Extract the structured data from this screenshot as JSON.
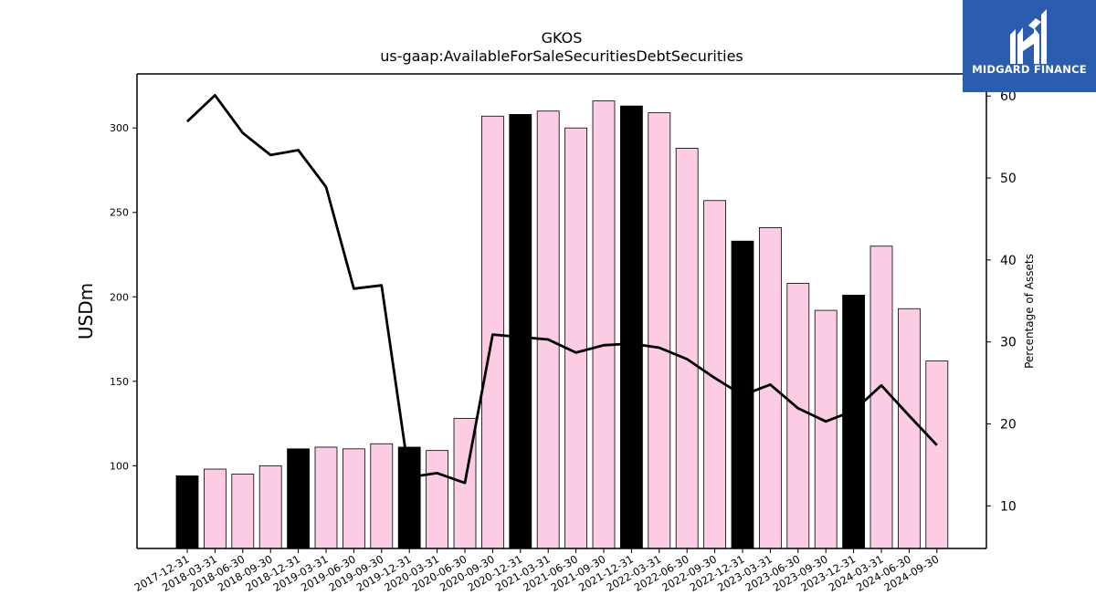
{
  "chart_data": {
    "type": "bar",
    "title": "GKOS",
    "subtitle": "us-gaap:AvailableForSaleSecuritiesDebtSecurities",
    "ylabel": "USDm",
    "y2label": "Percentage of Assets",
    "ylim": [
      51,
      332
    ],
    "y2lim": [
      4.8,
      62.7
    ],
    "yticks": [
      100,
      150,
      200,
      250,
      300
    ],
    "y2ticks": [
      10,
      20,
      30,
      40,
      50,
      60
    ],
    "categories": [
      "2017-12-31",
      "2018-03-31",
      "2018-06-30",
      "2018-09-30",
      "2018-12-31",
      "2019-03-31",
      "2019-06-30",
      "2019-09-30",
      "2019-12-31",
      "2020-03-31",
      "2020-06-30",
      "2020-09-30",
      "2020-12-31",
      "2021-03-31",
      "2021-06-30",
      "2021-09-30",
      "2021-12-31",
      "2022-03-31",
      "2022-06-30",
      "2022-09-30",
      "2022-12-31",
      "2023-03-31",
      "2023-06-30",
      "2023-09-30",
      "2023-12-31",
      "2024-03-31",
      "2024-06-30",
      "2024-09-30"
    ],
    "series": [
      {
        "axis": "left",
        "kind": "bar",
        "values": [
          94,
          98,
          95,
          100,
          110,
          111,
          110,
          113,
          111,
          109,
          128,
          307,
          308,
          310,
          300,
          316,
          313,
          309,
          288,
          257,
          233,
          241,
          208,
          192,
          201,
          230,
          193,
          162
        ],
        "highlight": [
          true,
          false,
          false,
          false,
          true,
          false,
          false,
          false,
          true,
          false,
          false,
          false,
          true,
          false,
          false,
          false,
          true,
          false,
          false,
          false,
          true,
          false,
          false,
          false,
          true,
          false,
          false,
          false
        ]
      },
      {
        "axis": "right",
        "kind": "line",
        "values": [
          56.9,
          60.1,
          55.5,
          52.8,
          53.4,
          48.9,
          36.5,
          36.9,
          13.5,
          14.0,
          12.8,
          30.9,
          30.6,
          30.3,
          28.7,
          29.6,
          29.8,
          29.3,
          27.9,
          25.6,
          23.5,
          24.8,
          21.9,
          20.3,
          21.6,
          24.7,
          21.0,
          17.4
        ]
      }
    ],
    "colors": {
      "bar_highlight": "#000000",
      "bar_normal": "#fbcce4",
      "line": "#000000",
      "logo_bg": "#2b5cad"
    },
    "grid": false
  },
  "logo": {
    "text": "MIDGARD FINANCE",
    "icon": "midgard-logo-icon"
  }
}
